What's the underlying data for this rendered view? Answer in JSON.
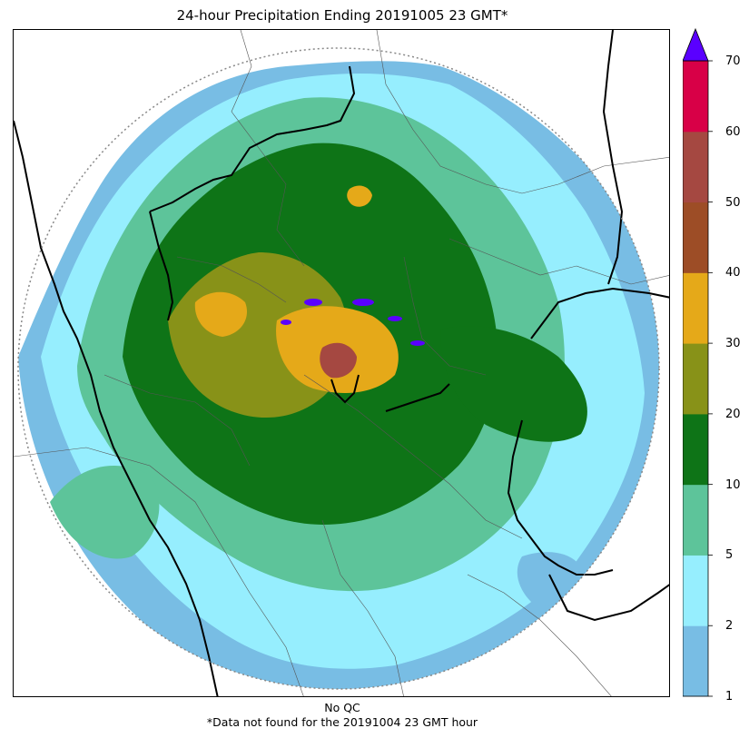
{
  "title": "24-hour Precipitation Ending 20191005 23 GMT*",
  "footer": {
    "line1": "No QC",
    "line2": "*Data not found for the 20191004 23 GMT hour"
  },
  "colorbar": {
    "extend": "max",
    "extend_color": "#5a00ff",
    "levels": [
      {
        "label": "1",
        "color": "#78bde4"
      },
      {
        "label": "2",
        "color": "#96eefe"
      },
      {
        "label": "5",
        "color": "#5dc49a"
      },
      {
        "label": "10",
        "color": "#0e7417"
      },
      {
        "label": "20",
        "color": "#889218"
      },
      {
        "label": "30",
        "color": "#e5a919"
      },
      {
        "label": "40",
        "color": "#9d4d26"
      },
      {
        "label": "50",
        "color": "#a54841"
      },
      {
        "label": "60",
        "color": "#d80047"
      },
      {
        "label": "70",
        "color": ""
      }
    ]
  },
  "map": {
    "range_ring": "dotted",
    "borders": "state and district boundaries",
    "field": "radar-estimated precipitation accumulation"
  }
}
